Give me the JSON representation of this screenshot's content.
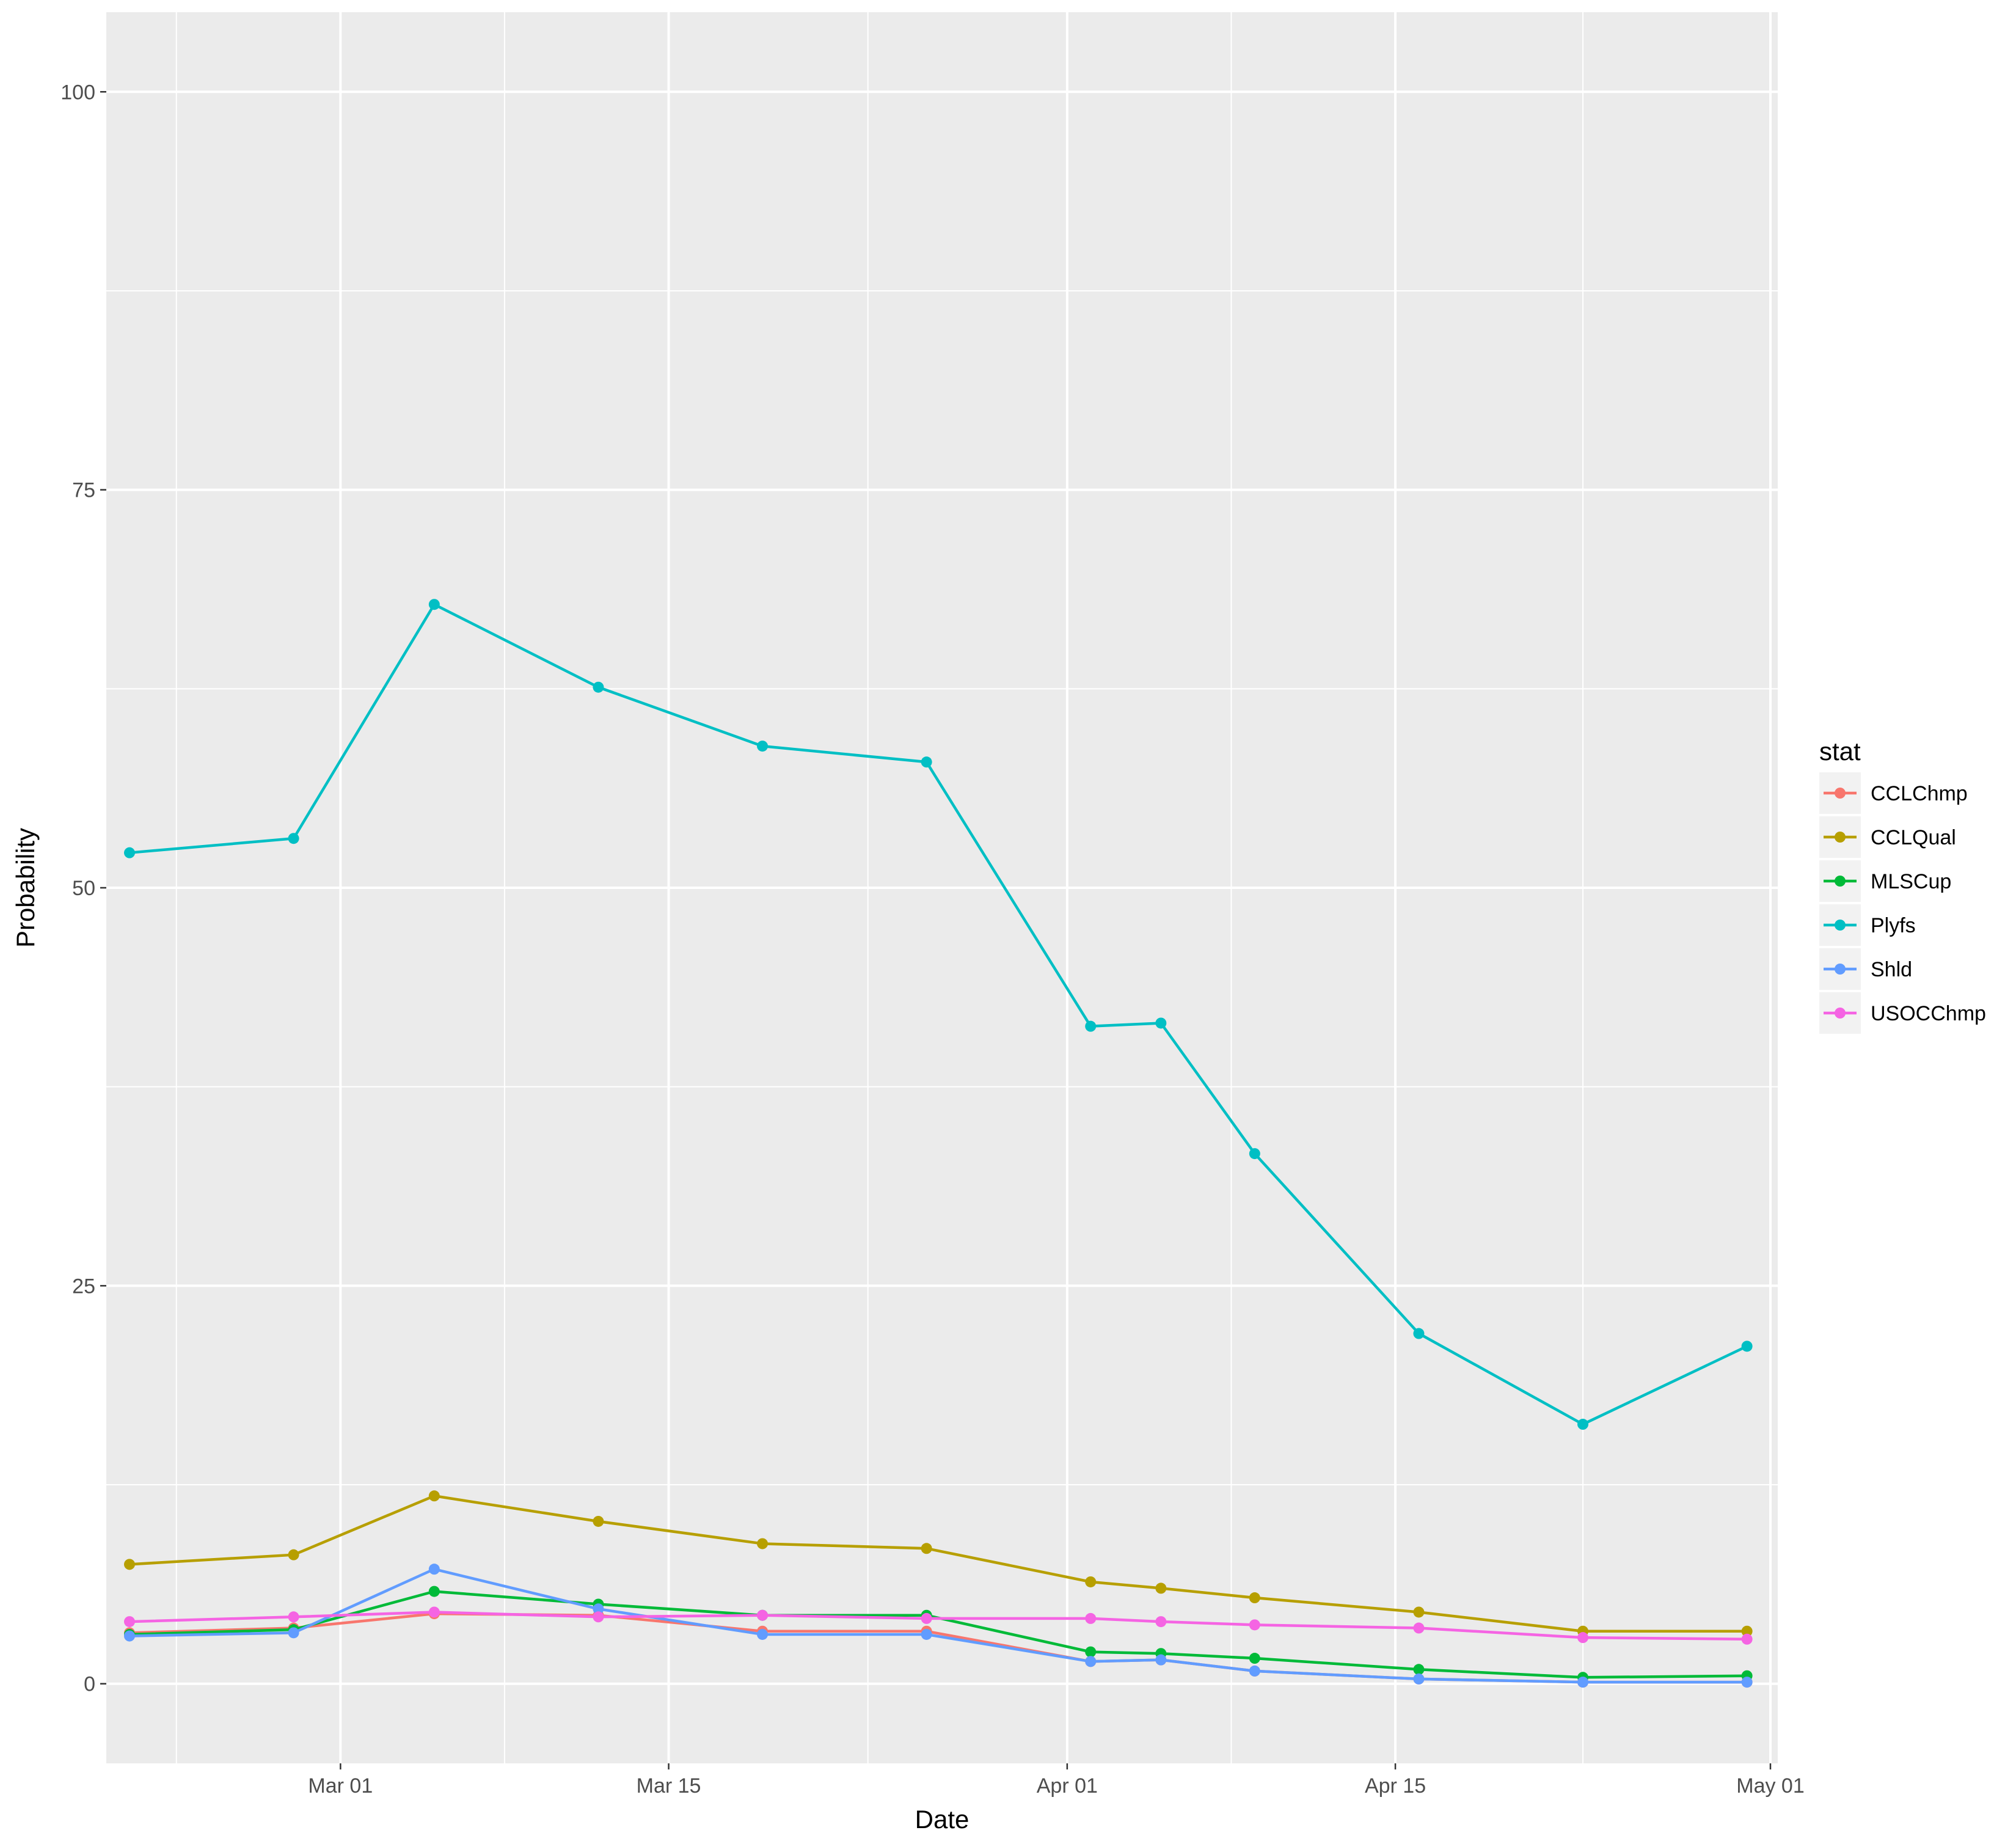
{
  "chart_data": {
    "type": "line",
    "title": "",
    "xlabel": "Date",
    "ylabel": "Probability",
    "x_type": "date",
    "xlim": [
      "2017-02-20",
      "2017-05-01"
    ],
    "ylim": [
      -5,
      105
    ],
    "xticks": [
      {
        "value": "2017-03-01",
        "label": "Mar 01"
      },
      {
        "value": "2017-03-15",
        "label": "Mar 15"
      },
      {
        "value": "2017-04-01",
        "label": "Apr 01"
      },
      {
        "value": "2017-04-15",
        "label": "Apr 15"
      },
      {
        "value": "2017-05-01",
        "label": "May 01"
      }
    ],
    "yticks": [
      {
        "value": 0,
        "label": "0"
      },
      {
        "value": 25,
        "label": "25"
      },
      {
        "value": 50,
        "label": "50"
      },
      {
        "value": 75,
        "label": "75"
      },
      {
        "value": 100,
        "label": "100"
      }
    ],
    "grid": true,
    "legend": {
      "title": "stat",
      "position": "right"
    },
    "x": [
      "2017-02-20",
      "2017-02-27",
      "2017-03-05",
      "2017-03-12",
      "2017-03-19",
      "2017-03-26",
      "2017-04-02",
      "2017-04-05",
      "2017-04-09",
      "2017-04-16",
      "2017-04-23",
      "2017-04-30"
    ],
    "series": [
      {
        "name": "CCLChmp",
        "color": "#F8766D",
        "values": [
          3.2,
          3.5,
          4.4,
          4.3,
          3.3,
          3.3,
          1.4,
          1.5,
          0.8,
          0.3,
          0.1,
          0.1
        ]
      },
      {
        "name": "CCLQual",
        "color": "#B79F00",
        "values": [
          7.5,
          8.1,
          11.8,
          10.2,
          8.8,
          8.5,
          6.4,
          6.0,
          5.4,
          4.5,
          3.3,
          3.3
        ]
      },
      {
        "name": "MLSCup",
        "color": "#00BA38",
        "values": [
          3.1,
          3.4,
          5.8,
          5.0,
          4.3,
          4.3,
          2.0,
          1.9,
          1.6,
          0.9,
          0.4,
          0.5
        ]
      },
      {
        "name": "Plyfs",
        "color": "#00BFC4",
        "values": [
          52.2,
          53.1,
          67.8,
          62.6,
          58.9,
          57.9,
          41.3,
          41.5,
          33.3,
          22.0,
          16.3,
          21.2
        ]
      },
      {
        "name": "Shld",
        "color": "#619CFF",
        "values": [
          3.0,
          3.2,
          7.2,
          4.7,
          3.1,
          3.1,
          1.4,
          1.5,
          0.8,
          0.3,
          0.1,
          0.1
        ]
      },
      {
        "name": "USOCChmp",
        "color": "#F564E3",
        "values": [
          3.9,
          4.2,
          4.5,
          4.2,
          4.3,
          4.1,
          4.1,
          3.9,
          3.7,
          3.5,
          2.9,
          2.8
        ]
      }
    ]
  }
}
